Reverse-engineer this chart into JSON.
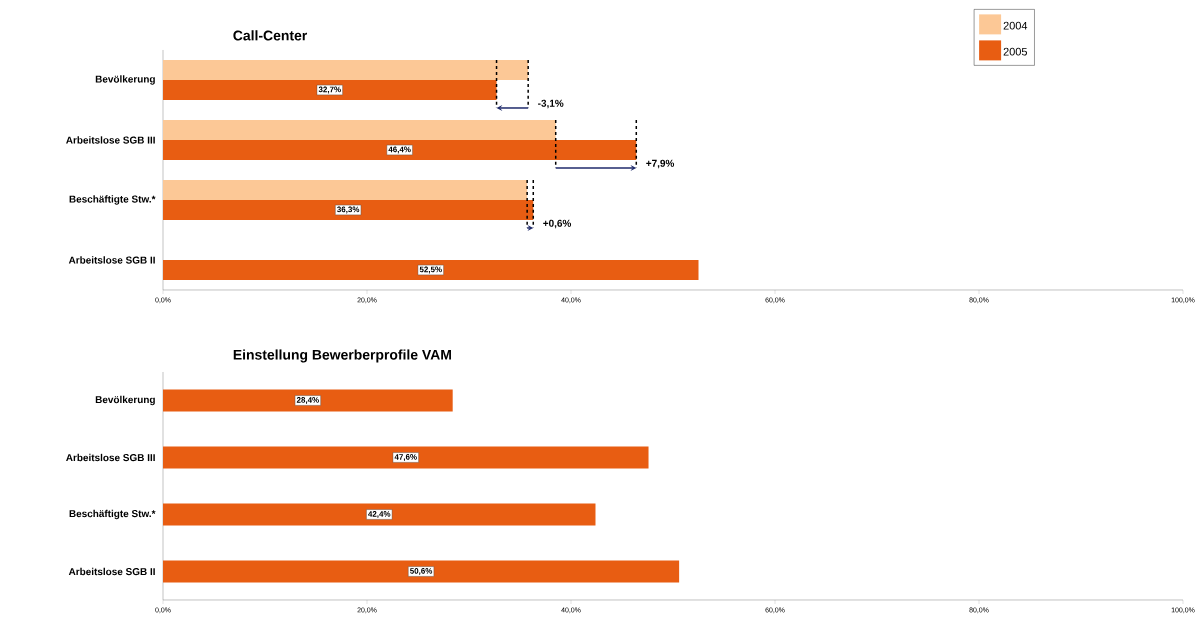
{
  "chart_data": [
    {
      "type": "bar",
      "orientation": "horizontal",
      "title": "Call-Center",
      "categories": [
        "Bevölkerung",
        "Arbeitslose SGB III",
        "Beschäftigte Stw.*",
        "Arbeitslose SGB II"
      ],
      "series": [
        {
          "name": "2004",
          "color": "#fcc896",
          "values": [
            35.8,
            38.5,
            35.7,
            null
          ]
        },
        {
          "name": "2005",
          "color": "#e85d12",
          "values": [
            32.7,
            46.4,
            36.3,
            52.5
          ],
          "value_labels": [
            "32,7%",
            "46,4%",
            "36,3%",
            "52,5%"
          ]
        }
      ],
      "xlim": [
        0,
        100
      ],
      "xticks": [
        {
          "value": 0,
          "label": "0,0%"
        },
        {
          "value": 20,
          "label": "20,0%"
        },
        {
          "value": 40,
          "label": "40,0%"
        },
        {
          "value": 60,
          "label": "60,0%"
        },
        {
          "value": 80,
          "label": "80,0%"
        },
        {
          "value": 100,
          "label": "100,0%"
        }
      ],
      "legend": "top right",
      "annotations": [
        {
          "text": "-3,1%",
          "x": 35.8,
          "y": "Bevölkerung"
        },
        {
          "text": "+7,9%",
          "x": 46.4,
          "y": "Arbeitslose SGB III"
        },
        {
          "text": "+0,6%",
          "x": 36.3,
          "y": "Beschäftigte Stw.*"
        }
      ]
    },
    {
      "type": "bar",
      "orientation": "horizontal",
      "title": "Einstellung Bewerberprofile VAM",
      "categories": [
        "Bevölkerung",
        "Arbeitslose SGB III",
        "Beschäftigte Stw.*",
        "Arbeitslose SGB II"
      ],
      "values": [
        28.4,
        47.6,
        42.4,
        50.6
      ],
      "color": "#e85d12",
      "value_labels": [
        "28,4%",
        "47,6%",
        "42,4%",
        "50,6%"
      ],
      "xlim": [
        0,
        100
      ],
      "xticks": [
        {
          "value": 0,
          "label": "0,0%"
        },
        {
          "value": 20,
          "label": "20,0%"
        },
        {
          "value": 40,
          "label": "40,0%"
        },
        {
          "value": 60,
          "label": "60,0%"
        },
        {
          "value": 80,
          "label": "80,0%"
        },
        {
          "value": 100,
          "label": "100,0%"
        }
      ]
    }
  ]
}
